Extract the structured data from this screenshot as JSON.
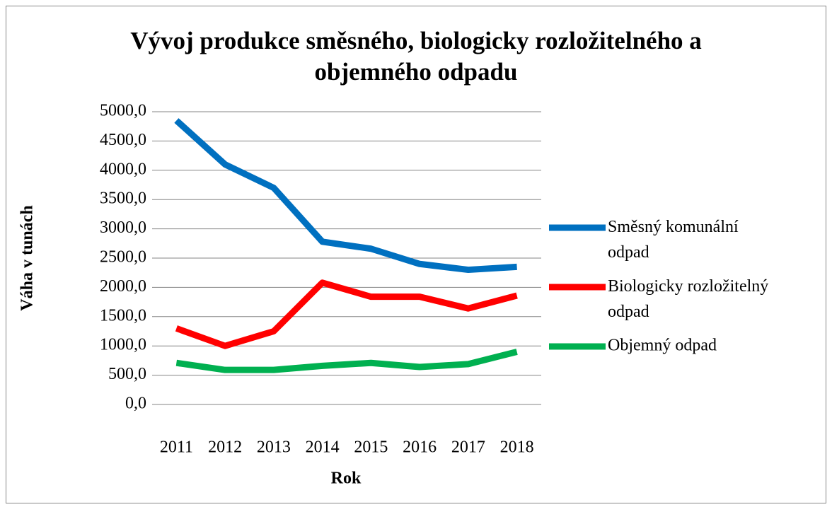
{
  "chart_data": {
    "type": "line",
    "title": "Vývoj produkce směsného, biologicky rozložitelného a objemného odpadu",
    "x_label": "Rok",
    "y_label": "Váha v tunách",
    "categories": [
      "2011",
      "2012",
      "2013",
      "2014",
      "2015",
      "2016",
      "2017",
      "2018"
    ],
    "series": [
      {
        "name": "Směsný komunální odpad",
        "color": "#0070c0",
        "values": [
          4850,
          4100,
          3700,
          2780,
          2660,
          2400,
          2300,
          2350
        ]
      },
      {
        "name": "Biologicky rozložitelný odpad",
        "color": "#ff0000",
        "values": [
          1300,
          1000,
          1250,
          2080,
          1840,
          1840,
          1640,
          1860
        ]
      },
      {
        "name": "Objemný odpad",
        "color": "#00b050",
        "values": [
          710,
          590,
          590,
          660,
          710,
          640,
          690,
          900
        ]
      }
    ],
    "ylim": [
      0,
      5000
    ],
    "yticks": [
      {
        "value": 0,
        "label": "0,0"
      },
      {
        "value": 500,
        "label": "500,0"
      },
      {
        "value": 1000,
        "label": "1000,0"
      },
      {
        "value": 1500,
        "label": "1500,0"
      },
      {
        "value": 2000,
        "label": "2000,0"
      },
      {
        "value": 2500,
        "label": "2500,0"
      },
      {
        "value": 3000,
        "label": "3000,0"
      },
      {
        "value": 3500,
        "label": "3500,0"
      },
      {
        "value": 4000,
        "label": "4000,0"
      },
      {
        "value": 4500,
        "label": "4500,0"
      },
      {
        "value": 5000,
        "label": "5000,0"
      }
    ],
    "grid": true,
    "legend": "right"
  }
}
